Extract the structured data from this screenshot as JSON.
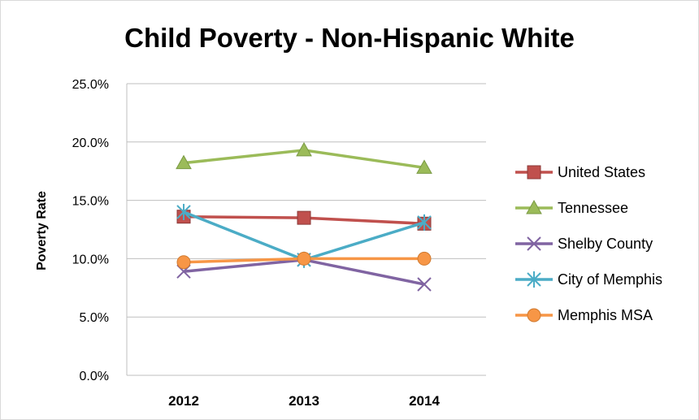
{
  "chart_data": {
    "type": "line",
    "title": "Child Poverty - Non-Hispanic White",
    "ylabel": "Poverty Rate",
    "xlabel": "",
    "categories": [
      "2012",
      "2013",
      "2014"
    ],
    "ylim": [
      0,
      25
    ],
    "yticks": [
      0,
      5,
      10,
      15,
      20,
      25
    ],
    "ytick_labels": [
      "0.0%",
      "5.0%",
      "10.0%",
      "15.0%",
      "20.0%",
      "25.0%"
    ],
    "grid": "horizontal",
    "legend_position": "right",
    "series": [
      {
        "name": "United States",
        "values": [
          13.6,
          13.5,
          13.0
        ],
        "color": "#c0504d",
        "marker": "square"
      },
      {
        "name": "Tennessee",
        "values": [
          18.2,
          19.3,
          17.8
        ],
        "color": "#9bbb59",
        "marker": "triangle"
      },
      {
        "name": "Shelby County",
        "values": [
          8.9,
          9.9,
          7.8
        ],
        "color": "#8064a2",
        "marker": "x"
      },
      {
        "name": "City of Memphis",
        "values": [
          14.0,
          9.9,
          13.1
        ],
        "color": "#4bacc6",
        "marker": "star"
      },
      {
        "name": "Memphis MSA",
        "values": [
          9.7,
          10.0,
          10.0
        ],
        "color": "#f79646",
        "marker": "circle"
      }
    ]
  }
}
